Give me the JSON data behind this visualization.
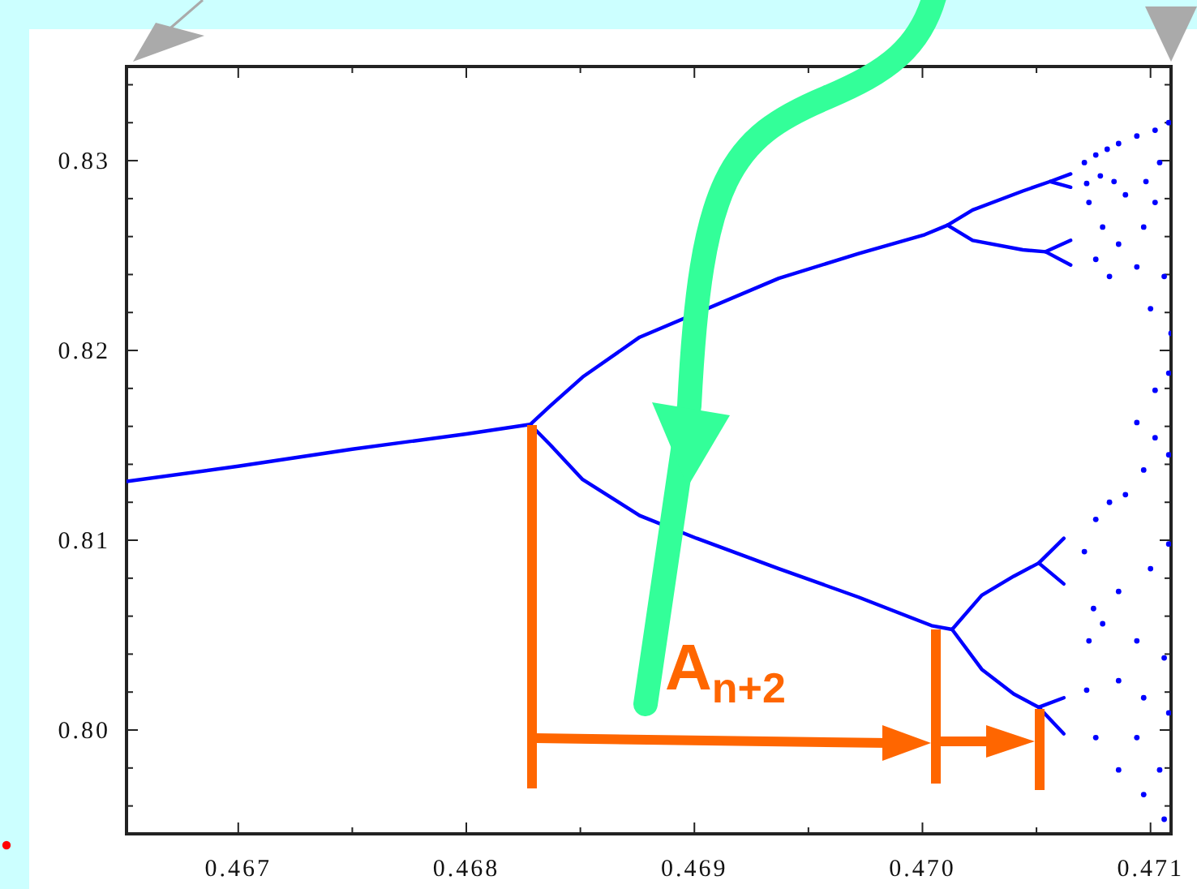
{
  "chart_data": {
    "type": "scatter",
    "xlim": [
      0.46651,
      0.47109
    ],
    "ylim": [
      0.79453,
      0.83496
    ],
    "xticks": [
      0.467,
      {
        "value": 0.4675,
        "label": null
      },
      0.468,
      {
        "value": 0.4685,
        "label": null
      },
      0.469,
      {
        "value": 0.4695,
        "label": null
      },
      {
        "value": 0.47,
        "label": "0.470"
      },
      {
        "value": 0.4705,
        "label": null
      },
      0.471
    ],
    "yticks": [
      {
        "value": 0.796,
        "label": null
      },
      {
        "value": 0.798,
        "label": null
      },
      {
        "value": 0.8,
        "label": "0.80"
      },
      {
        "value": 0.802,
        "label": null
      },
      {
        "value": 0.804,
        "label": null
      },
      {
        "value": 0.806,
        "label": null
      },
      {
        "value": 0.808,
        "label": null
      },
      0.81,
      {
        "value": 0.812,
        "label": null
      },
      {
        "value": 0.814,
        "label": null
      },
      {
        "value": 0.816,
        "label": null
      },
      {
        "value": 0.818,
        "label": null
      },
      0.82,
      {
        "value": 0.822,
        "label": null
      },
      {
        "value": 0.824,
        "label": null
      },
      {
        "value": 0.826,
        "label": null
      },
      {
        "value": 0.828,
        "label": null
      },
      0.83,
      {
        "value": 0.832,
        "label": null
      },
      {
        "value": 0.834,
        "label": null
      }
    ],
    "grid": false,
    "marker": "circle",
    "line_style": "solid",
    "annotations": [
      "A$_{n+2}$"
    ],
    "series": [
      {
        "type": "line",
        "marker": "none",
        "color": "#0000ff",
        "x": [
          0.46651,
          0.467,
          0.4675,
          0.468,
          0.46828,
          0.46837,
          0.46851,
          0.46876,
          0.46937,
          0.46972,
          0.47001,
          0.47011,
          0.47022,
          0.47044,
          0.47056,
          0.47065
        ],
        "values": [
          0.8131,
          0.8139,
          0.8148,
          0.8156,
          0.8161,
          0.8171,
          0.8186,
          0.8207,
          0.8238,
          0.8251,
          0.8261,
          0.8266,
          0.8274,
          0.8284,
          0.8289,
          0.8293
        ]
      },
      {
        "type": "line",
        "marker": "none",
        "color": "#0000ff",
        "x": [
          0.47056,
          0.47065
        ],
        "values": [
          0.8289,
          0.8286
        ]
      },
      {
        "type": "line",
        "marker": "none",
        "color": "#0000ff",
        "x": [
          0.47011,
          0.47022,
          0.47044,
          0.47054,
          0.47065
        ],
        "values": [
          0.8266,
          0.8258,
          0.8253,
          0.8252,
          0.8245
        ]
      },
      {
        "type": "line",
        "marker": "none",
        "color": "#0000ff",
        "x": [
          0.47054,
          0.47065
        ],
        "values": [
          0.8252,
          0.8258
        ]
      },
      {
        "type": "line",
        "marker": "none",
        "color": "#0000ff",
        "x": [
          0.46828,
          0.46837,
          0.46851,
          0.46876,
          0.46901,
          0.46937,
          0.46972,
          0.47004,
          0.47013,
          0.47026,
          0.4704,
          0.47051,
          0.47062
        ],
        "values": [
          0.8161,
          0.815,
          0.8132,
          0.8113,
          0.8101,
          0.8085,
          0.807,
          0.8055,
          0.8053,
          0.8071,
          0.8081,
          0.8088,
          0.8101
        ]
      },
      {
        "type": "line",
        "marker": "none",
        "color": "#0000ff",
        "x": [
          0.47051,
          0.47062
        ],
        "values": [
          0.8088,
          0.8077
        ]
      },
      {
        "type": "line",
        "marker": "none",
        "color": "#0000ff",
        "x": [
          0.47013,
          0.47026,
          0.4704,
          0.47051,
          0.47062
        ],
        "values": [
          0.8053,
          0.8032,
          0.8019,
          0.8012,
          0.8017
        ]
      },
      {
        "type": "line",
        "marker": "none",
        "color": "#0000ff",
        "x": [
          0.47051,
          0.47062
        ],
        "values": [
          0.8012,
          0.7998
        ]
      },
      {
        "color": "#0000ff",
        "x": [
          0.47071,
          0.47076,
          0.47081,
          0.47086,
          0.47094,
          0.47102,
          0.47108,
          0.47072,
          0.47078,
          0.47084,
          0.47089,
          0.47098,
          0.47104,
          0.47102,
          0.47097,
          0.47086,
          0.47079,
          0.47073,
          0.47076,
          0.47082,
          0.47094,
          0.47106,
          0.471,
          0.47109,
          0.47108,
          0.47094,
          0.47102,
          0.47071,
          0.47076,
          0.47082,
          0.47089,
          0.47097,
          0.47102,
          0.47108,
          0.47075,
          0.47086,
          0.471,
          0.47108,
          0.47073,
          0.47079,
          0.47094,
          0.47106,
          0.47072,
          0.47086,
          0.47097,
          0.47108,
          0.47076,
          0.47086,
          0.47097,
          0.47106,
          0.47094,
          0.47104
        ],
        "values": [
          0.8299,
          0.8303,
          0.8306,
          0.8309,
          0.8313,
          0.8316,
          0.832,
          0.8288,
          0.8292,
          0.8289,
          0.8282,
          0.8289,
          0.8299,
          0.8278,
          0.8265,
          0.8256,
          0.8265,
          0.8278,
          0.8248,
          0.8239,
          0.8244,
          0.8239,
          0.8222,
          0.8209,
          0.8188,
          0.8162,
          0.8179,
          0.8094,
          0.8111,
          0.812,
          0.8124,
          0.8137,
          0.8154,
          0.8145,
          0.8064,
          0.8073,
          0.8085,
          0.8098,
          0.8047,
          0.8056,
          0.8047,
          0.8038,
          0.8021,
          0.8026,
          0.8017,
          0.8009,
          0.7996,
          0.7979,
          0.7966,
          0.7953,
          0.7996,
          0.7979
        ]
      }
    ]
  }
}
